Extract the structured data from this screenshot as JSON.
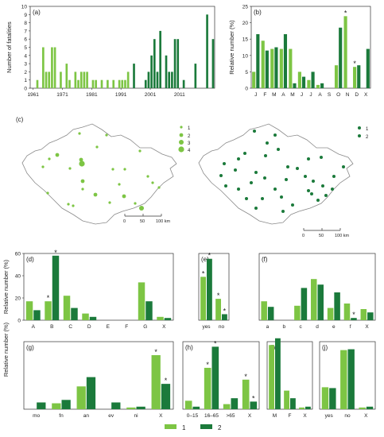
{
  "colors": {
    "light": "#7DC544",
    "dark": "#1B7A3B",
    "axis": "#333333",
    "map": "#8a8a8a"
  },
  "legend": {
    "items": [
      {
        "label": "1"
      },
      {
        "label": "2"
      }
    ]
  },
  "chart_data": [
    {
      "id": "a",
      "panel_label": "(a)",
      "type": "bar",
      "ylabel": "Number of fatalities",
      "ylim": [
        0,
        10
      ],
      "yticks": [
        "0",
        "1",
        "2",
        "3",
        "4",
        "5",
        "6",
        "7",
        "8",
        "9",
        "10"
      ],
      "xticks": [
        {
          "year": 1961,
          "label": "1961"
        },
        {
          "year": 1971,
          "label": "1971"
        },
        {
          "year": 1981,
          "label": "1981"
        },
        {
          "year": 1991,
          "label": "1991"
        },
        {
          "year": 2001,
          "label": "2001"
        },
        {
          "year": 2011,
          "label": "2011"
        }
      ],
      "series": [
        {
          "x": [
            1962,
            1964,
            1965,
            1966,
            1967,
            1968,
            1970,
            1972,
            1973,
            1975,
            1976,
            1977,
            1978,
            1979,
            1981,
            1982,
            1984,
            1986,
            1988,
            1990,
            1991,
            1992,
            1993
          ],
          "values": [
            1,
            5,
            2,
            2,
            5,
            5,
            2,
            3,
            1,
            2,
            1,
            2,
            2,
            2,
            1,
            1,
            1,
            1,
            1,
            1,
            1,
            1,
            2
          ]
        },
        {
          "x": [
            1995,
            1999,
            2000,
            2001,
            2002,
            2003,
            2004,
            2006,
            2007,
            2008,
            2009,
            2010,
            2012,
            2016,
            2020,
            2022
          ],
          "values": [
            3,
            1,
            2,
            4,
            6,
            2,
            7,
            4,
            2,
            2,
            6,
            6,
            1,
            3,
            9,
            6
          ]
        }
      ]
    },
    {
      "id": "b",
      "panel_label": "(b)",
      "type": "bar",
      "ylabel": "Relative number (%)",
      "ylim": [
        0,
        25
      ],
      "yticks": [
        "0",
        "5",
        "10",
        "15",
        "20",
        "25"
      ],
      "categories": [
        "J",
        "F",
        "M",
        "A",
        "M",
        "J",
        "J",
        "A",
        "S",
        "O",
        "N",
        "D",
        "X"
      ],
      "series": [
        {
          "values": [
            5,
            14.5,
            12,
            12,
            12,
            5,
            2.5,
            1,
            0,
            7,
            22,
            6.5,
            0
          ]
        },
        {
          "values": [
            16.5,
            11.5,
            12.5,
            16.5,
            1.5,
            3.5,
            5,
            1.5,
            0,
            18.5,
            0,
            7,
            12
          ]
        }
      ],
      "stars": [
        {
          "category": 10,
          "series": 0
        },
        {
          "category": 11,
          "series": 0
        }
      ]
    },
    {
      "id": "d",
      "panel_label": "(d)",
      "type": "bar",
      "ylabel": "Relative number (%)",
      "ylim": [
        0,
        60
      ],
      "yticks": [
        "0",
        "20",
        "40",
        "60"
      ],
      "categories": [
        "A",
        "B",
        "C",
        "D",
        "E",
        "F",
        "G",
        "X"
      ],
      "series": [
        {
          "values": [
            17,
            17,
            22,
            6,
            0,
            0,
            34,
            3
          ]
        },
        {
          "values": [
            9,
            58,
            11,
            3,
            0,
            0,
            17,
            2
          ]
        }
      ],
      "stars": [
        {
          "category": 1,
          "series": 0
        },
        {
          "category": 1,
          "series": 1
        }
      ]
    },
    {
      "id": "e",
      "panel_label": "(e)",
      "type": "bar",
      "ylim": [
        0,
        100
      ],
      "categories": [
        "yes",
        "no"
      ],
      "series": [
        {
          "values": [
            65,
            32
          ]
        },
        {
          "values": [
            92,
            9
          ]
        }
      ],
      "stars": [
        {
          "category": 0,
          "series": 0
        },
        {
          "category": 0,
          "series": 1
        },
        {
          "category": 1,
          "series": 0
        },
        {
          "category": 1,
          "series": 1
        }
      ]
    },
    {
      "id": "f",
      "panel_label": "(f)",
      "type": "bar",
      "ylim": [
        0,
        60
      ],
      "categories": [
        "a",
        "b",
        "c",
        "d",
        "e",
        "f",
        "X"
      ],
      "series": [
        {
          "values": [
            17,
            0,
            13,
            37,
            11,
            15,
            10
          ]
        },
        {
          "values": [
            12,
            0,
            29,
            32,
            25,
            2,
            7
          ]
        }
      ],
      "stars": [
        {
          "category": 5,
          "series": 1
        }
      ]
    },
    {
      "id": "g",
      "panel_label": "(g)",
      "type": "bar",
      "ylim": [
        0,
        80
      ],
      "categories": [
        "mo",
        "fn",
        "an",
        "ev",
        "ni",
        "X"
      ],
      "series": [
        {
          "values": [
            0,
            7,
            27,
            0,
            2,
            64
          ]
        },
        {
          "values": [
            8,
            11,
            38,
            8,
            3,
            30
          ]
        }
      ],
      "stars": [
        {
          "category": 5,
          "series": 0
        },
        {
          "category": 5,
          "series": 1
        }
      ]
    },
    {
      "id": "h",
      "panel_label": "(h)",
      "type": "bar",
      "ylim": [
        0,
        80
      ],
      "categories": [
        "0–15",
        "16–65",
        ">65",
        "X"
      ],
      "series": [
        {
          "values": [
            10,
            49,
            6,
            35
          ]
        },
        {
          "values": [
            3,
            74,
            13,
            9
          ]
        }
      ],
      "stars": [
        {
          "category": 1,
          "series": 0
        },
        {
          "category": 1,
          "series": 1
        },
        {
          "category": 3,
          "series": 0
        },
        {
          "category": 3,
          "series": 1
        }
      ]
    },
    {
      "id": "i",
      "panel_label": "(i)",
      "type": "bar",
      "ylim": [
        0,
        80
      ],
      "categories": [
        "M",
        "F",
        "X"
      ],
      "series": [
        {
          "values": [
            76,
            22,
            2
          ]
        },
        {
          "values": [
            84,
            13,
            3
          ]
        }
      ]
    },
    {
      "id": "j",
      "panel_label": "(j)",
      "type": "bar",
      "ylim": [
        0,
        80
      ],
      "categories": [
        "yes",
        "no",
        "X"
      ],
      "series": [
        {
          "values": [
            26,
            70,
            2
          ]
        },
        {
          "values": [
            25,
            71,
            3
          ]
        }
      ]
    }
  ],
  "shared_ylabel_lower": "Relative number (%)",
  "maps": {
    "panel_label": "(c)",
    "left_legend": [
      {
        "label": "1",
        "size": 1
      },
      {
        "label": "2",
        "size": 2
      },
      {
        "label": "3",
        "size": 3
      },
      {
        "label": "4",
        "size": 4
      }
    ],
    "right_legend": [
      {
        "label": "1"
      },
      {
        "label": "2"
      }
    ],
    "scale_labels": [
      "0",
      "50",
      "100 km"
    ]
  }
}
